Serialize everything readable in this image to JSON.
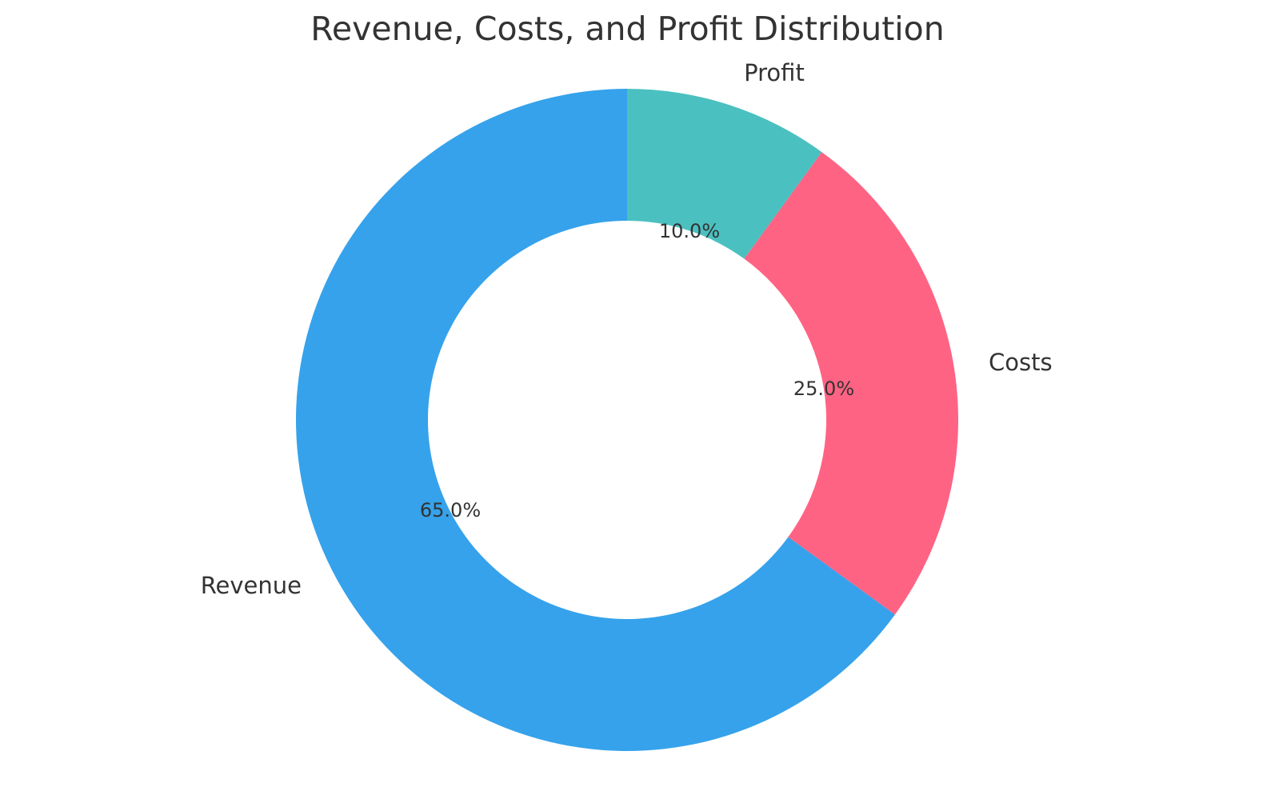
{
  "chart_data": {
    "type": "pie",
    "variant": "donut",
    "title": "Revenue, Costs, and Profit Distribution",
    "categories": [
      "Revenue",
      "Costs",
      "Profit"
    ],
    "values": [
      65.0,
      25.0,
      10.0
    ],
    "value_labels": [
      "65.0%",
      "25.0%",
      "10.0%"
    ],
    "colors": [
      "#36A2EB",
      "#FF6384",
      "#4BC0C0"
    ],
    "start_angle": 90,
    "direction": "clockwise_for_profit_first",
    "legend": "none",
    "xlabel": "",
    "ylabel": ""
  },
  "labels": {
    "revenue": "Revenue",
    "costs": "Costs",
    "profit": "Profit",
    "revenue_pct": "65.0%",
    "costs_pct": "25.0%",
    "profit_pct": "10.0%"
  }
}
